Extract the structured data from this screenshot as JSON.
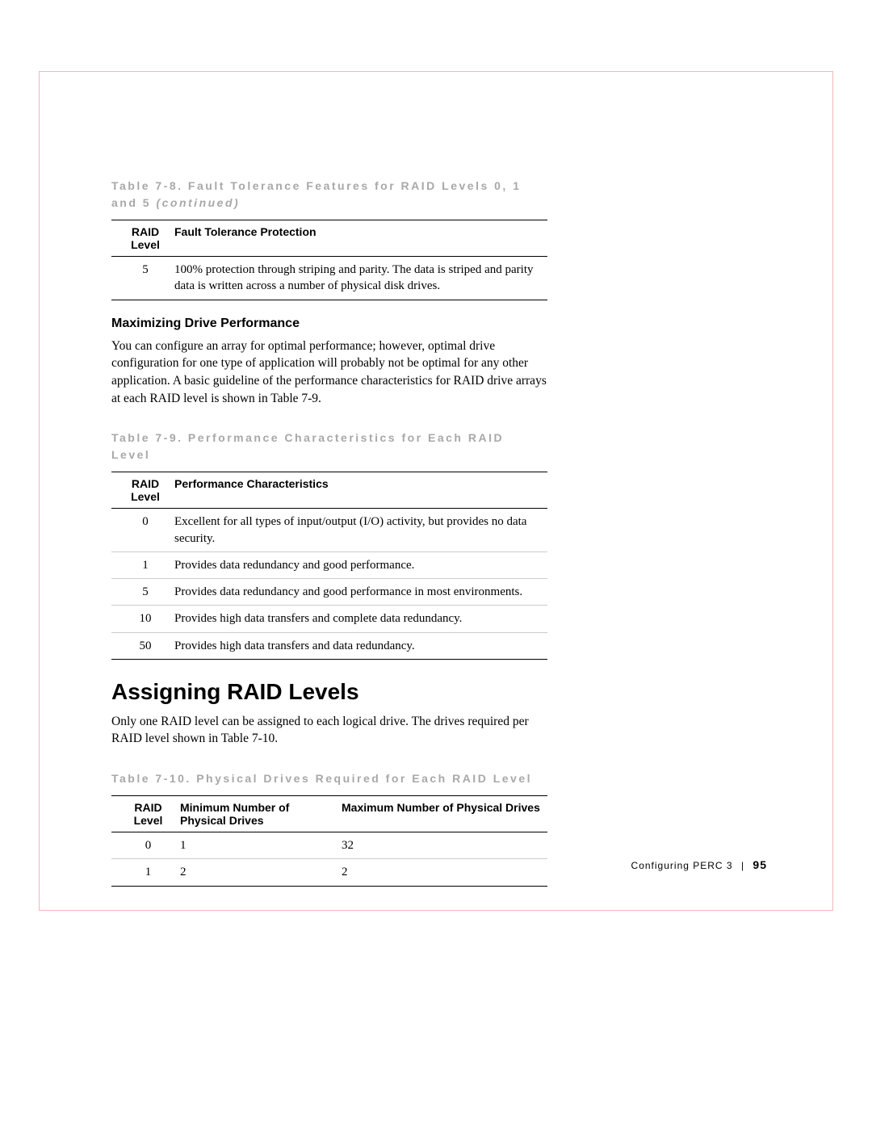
{
  "table1": {
    "caption_prefix": "Table 7-8. Fault Tolerance Features for RAID Levels 0, 1 and 5 ",
    "caption_suffix": "(continued)",
    "col_level": "RAID Level",
    "col_desc": "Fault Tolerance Protection",
    "rows": [
      {
        "level": "5",
        "desc": "100% protection through striping and parity. The data is striped and parity data is written across a number of physical disk drives."
      }
    ]
  },
  "section1": {
    "heading": "Maximizing Drive Performance",
    "body": "You can configure an array for optimal performance; however, optimal drive configuration for one type of application will probably not be optimal for any other application. A basic guideline of the performance characteristics for RAID drive arrays at each RAID level is shown in Table 7-9."
  },
  "table2": {
    "caption": "Table 7-9. Performance Characteristics for Each RAID Level",
    "col_level": "RAID Level",
    "col_desc": "Performance Characteristics",
    "rows": [
      {
        "level": "0",
        "desc": "Excellent for all types of input/output (I/O) activity, but provides no data security."
      },
      {
        "level": "1",
        "desc": "Provides data redundancy and good performance."
      },
      {
        "level": "5",
        "desc": "Provides data redundancy and good performance in most environments."
      },
      {
        "level": "10",
        "desc": "Provides high data transfers and complete data redundancy."
      },
      {
        "level": "50",
        "desc": "Provides high data transfers and data redundancy."
      }
    ]
  },
  "section2": {
    "heading": "Assigning RAID Levels",
    "body": "Only one RAID level can be assigned to each logical drive. The drives required per RAID level shown in Table 7-10."
  },
  "table3": {
    "caption": "Table 7-10. Physical Drives Required for Each RAID Level",
    "col_level": "RAID Level",
    "col_min": "Minimum Number of Physical Drives",
    "col_max": "Maximum Number of Physical Drives",
    "rows": [
      {
        "level": "0",
        "min": "1",
        "max": "32"
      },
      {
        "level": "1",
        "min": "2",
        "max": "2"
      }
    ]
  },
  "footer": {
    "section": "Configuring PERC 3",
    "page": "95"
  }
}
